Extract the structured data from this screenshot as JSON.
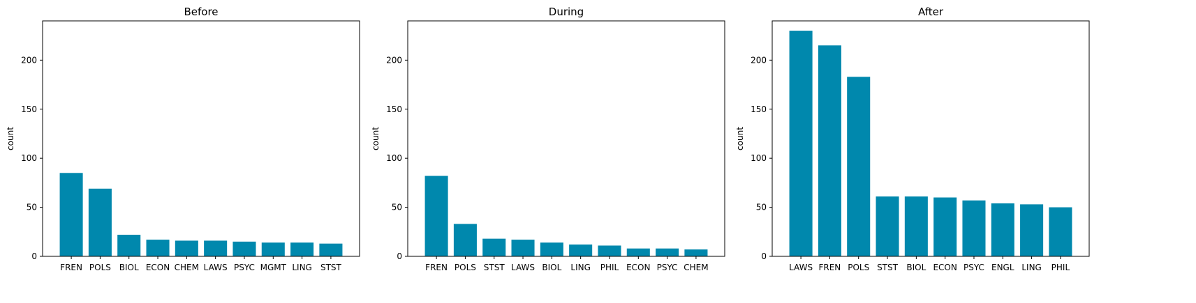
{
  "chart_data": [
    {
      "type": "bar",
      "title": "Before",
      "xlabel": "",
      "ylabel": "count",
      "categories": [
        "FREN",
        "POLS",
        "BIOL",
        "ECON",
        "CHEM",
        "LAWS",
        "PSYC",
        "MGMT",
        "LING",
        "STST"
      ],
      "values": [
        85,
        69,
        22,
        17,
        16,
        16,
        15,
        14,
        14,
        13
      ],
      "ylim": [
        0,
        240
      ],
      "yticks": [
        0,
        50,
        100,
        150,
        200
      ],
      "grid": false,
      "color": "#0088ad"
    },
    {
      "type": "bar",
      "title": "During",
      "xlabel": "",
      "ylabel": "count",
      "categories": [
        "FREN",
        "POLS",
        "STST",
        "LAWS",
        "BIOL",
        "LING",
        "PHIL",
        "ECON",
        "PSYC",
        "CHEM"
      ],
      "values": [
        82,
        33,
        18,
        17,
        14,
        12,
        11,
        8,
        8,
        7
      ],
      "ylim": [
        0,
        240
      ],
      "yticks": [
        0,
        50,
        100,
        150,
        200
      ],
      "grid": false,
      "color": "#0088ad"
    },
    {
      "type": "bar",
      "title": "After",
      "xlabel": "",
      "ylabel": "count",
      "categories": [
        "LAWS",
        "FREN",
        "POLS",
        "STST",
        "BIOL",
        "ECON",
        "PSYC",
        "ENGL",
        "LING",
        "PHIL"
      ],
      "values": [
        230,
        215,
        183,
        61,
        61,
        60,
        57,
        54,
        53,
        50
      ],
      "ylim": [
        0,
        240
      ],
      "yticks": [
        0,
        50,
        100,
        150,
        200
      ],
      "grid": false,
      "color": "#0088ad"
    }
  ]
}
